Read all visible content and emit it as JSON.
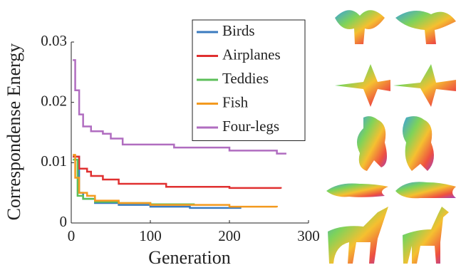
{
  "chart_data": {
    "type": "line",
    "xlabel": "Generation",
    "ylabel": "Correspondense Energy",
    "xlim": [
      0,
      300
    ],
    "xticks": [
      0,
      100,
      200,
      300
    ],
    "ylim": [
      0,
      0.03
    ],
    "yticks": [
      0,
      0.01,
      0.02,
      0.03
    ],
    "legend": "upper right",
    "series": [
      {
        "name": "Birds",
        "color": "#3b7bbf",
        "x": [
          2,
          10,
          15,
          30,
          60,
          100,
          150,
          215
        ],
        "values": [
          0.011,
          0.005,
          0.004,
          0.0033,
          0.003,
          0.0027,
          0.0025,
          0.0025
        ]
      },
      {
        "name": "Airplanes",
        "color": "#e03030",
        "x": [
          2,
          10,
          20,
          25,
          40,
          60,
          120,
          200,
          265
        ],
        "values": [
          0.011,
          0.009,
          0.0085,
          0.0078,
          0.0072,
          0.0065,
          0.006,
          0.0058,
          0.0057
        ]
      },
      {
        "name": "Teddies",
        "color": "#5dbf5a",
        "x": [
          2,
          8,
          15,
          30,
          60,
          100,
          155
        ],
        "values": [
          0.0105,
          0.0045,
          0.004,
          0.0035,
          0.0033,
          0.0031,
          0.003
        ]
      },
      {
        "name": "Fish",
        "color": "#f39a1f",
        "x": [
          2,
          5,
          10,
          20,
          30,
          60,
          100,
          200,
          260
        ],
        "values": [
          0.0113,
          0.0075,
          0.005,
          0.0045,
          0.0037,
          0.0033,
          0.003,
          0.0027,
          0.0026
        ]
      },
      {
        "name": "Four-legs",
        "color": "#b06dc0",
        "x": [
          2,
          5,
          10,
          15,
          25,
          40,
          50,
          65,
          130,
          200,
          260,
          272
        ],
        "values": [
          0.027,
          0.022,
          0.018,
          0.016,
          0.0152,
          0.0148,
          0.014,
          0.013,
          0.0125,
          0.012,
          0.0115,
          0.0115
        ]
      }
    ]
  }
}
